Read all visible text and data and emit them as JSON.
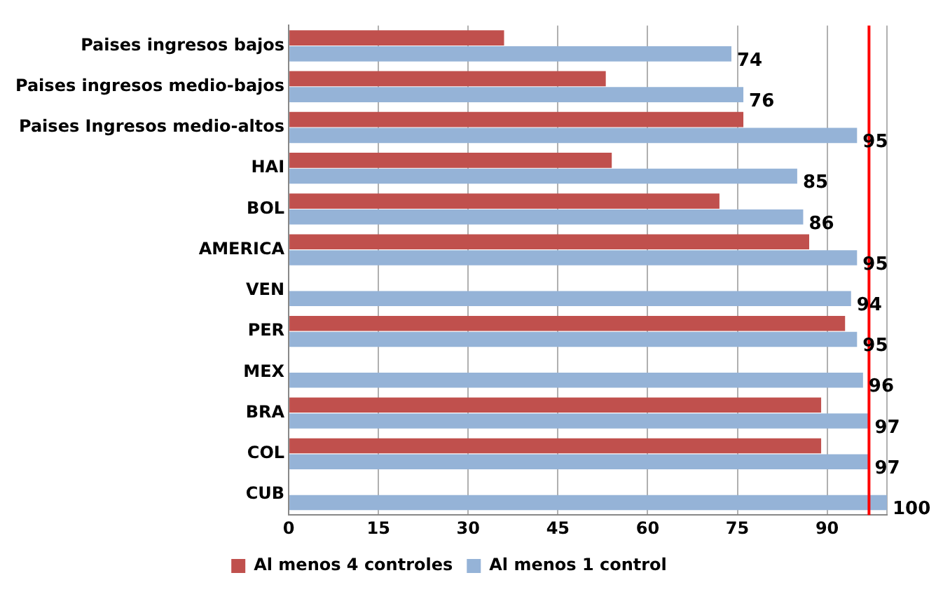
{
  "chart_data": {
    "type": "bar",
    "orientation": "horizontal",
    "categories": [
      "Paises ingresos bajos",
      "Paises ingresos medio-bajos",
      "Paises Ingresos medio-altos",
      "HAI",
      "BOL",
      "AMERICA",
      "VEN",
      "PER",
      "MEX",
      "BRA",
      "COL",
      "CUB"
    ],
    "series": [
      {
        "name": "Al menos 4 controles",
        "color": "#c0504d",
        "values": [
          36,
          53,
          76,
          54,
          72,
          87,
          null,
          93,
          null,
          89,
          89,
          null
        ]
      },
      {
        "name": "Al menos 1 control",
        "color": "#95b3d7",
        "values": [
          74,
          76,
          95,
          85,
          86,
          95,
          94,
          95,
          96,
          97,
          97,
          100
        ],
        "value_labels": [
          "74",
          "76",
          "95",
          "85",
          "86",
          "95",
          "94",
          "95",
          "96",
          "97",
          "97",
          "100"
        ]
      }
    ],
    "xlim": [
      0,
      100
    ],
    "xticks": [
      0,
      15,
      30,
      45,
      60,
      75,
      90,
      {
        "value": 100,
        "label": null
      }
    ],
    "grid": "x",
    "legend": "bottom",
    "ref_lines": [
      {
        "axis": "x",
        "value": 97,
        "color": "#ff0000"
      }
    ]
  }
}
